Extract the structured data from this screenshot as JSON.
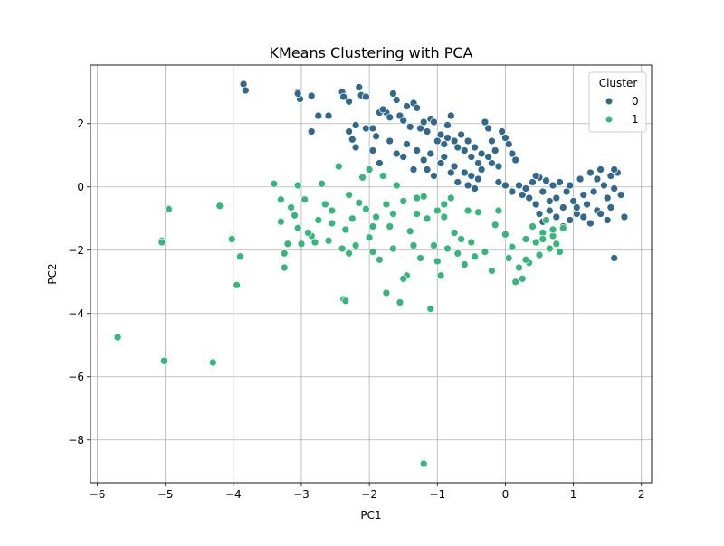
{
  "colors": {
    "cluster0": "#31688e",
    "cluster1": "#35b779",
    "grid": "#b0b0b0"
  },
  "chart_data": {
    "type": "scatter",
    "title": "KMeans Clustering with PCA",
    "xlabel": "PC1",
    "ylabel": "PC2",
    "xlim": [
      -6.1,
      2.15
    ],
    "ylim": [
      -9.35,
      3.85
    ],
    "xticks": [
      -6,
      -5,
      -4,
      -3,
      -2,
      -1,
      0,
      1,
      2
    ],
    "yticks": [
      -8,
      -6,
      -4,
      -2,
      0,
      2
    ],
    "grid": true,
    "legend": {
      "title": "Cluster",
      "placement": "top-right",
      "labels": [
        "0",
        "1"
      ]
    },
    "series": [
      {
        "name": "0",
        "points": [
          [
            -3.85,
            3.25
          ],
          [
            -3.82,
            3.05
          ],
          [
            -3.05,
            3.0
          ],
          [
            -3.02,
            2.78
          ],
          [
            -2.85,
            2.88
          ],
          [
            -2.75,
            2.25
          ],
          [
            -2.85,
            1.75
          ],
          [
            -2.4,
            3.0
          ],
          [
            -2.38,
            2.85
          ],
          [
            -2.3,
            2.7
          ],
          [
            -2.15,
            3.15
          ],
          [
            -2.12,
            2.9
          ],
          [
            -2.05,
            2.85
          ],
          [
            -2.3,
            1.75
          ],
          [
            -2.25,
            1.5
          ],
          [
            -2.2,
            1.95
          ],
          [
            -2.2,
            1.25
          ],
          [
            -2.05,
            1.85
          ],
          [
            -1.95,
            1.85
          ],
          [
            -1.9,
            1.6
          ],
          [
            -1.85,
            2.35
          ],
          [
            -1.75,
            2.35
          ],
          [
            -1.7,
            2.2
          ],
          [
            -1.65,
            2.95
          ],
          [
            -1.6,
            2.75
          ],
          [
            -1.55,
            2.25
          ],
          [
            -1.5,
            2.1
          ],
          [
            -1.45,
            2.55
          ],
          [
            -1.4,
            1.9
          ],
          [
            -1.35,
            2.65
          ],
          [
            -1.3,
            2.5
          ],
          [
            -1.25,
            1.85
          ],
          [
            -1.2,
            2.05
          ],
          [
            -1.15,
            1.75
          ],
          [
            -1.1,
            2.15
          ],
          [
            -1.05,
            2.05
          ],
          [
            -1.0,
            1.45
          ],
          [
            -0.95,
            1.65
          ],
          [
            -0.9,
            1.35
          ],
          [
            -0.85,
            1.95
          ],
          [
            -0.8,
            2.25
          ],
          [
            -0.75,
            1.45
          ],
          [
            -0.7,
            1.25
          ],
          [
            -0.65,
            1.65
          ],
          [
            -0.6,
            1.15
          ],
          [
            -0.55,
            1.45
          ],
          [
            -0.5,
            0.95
          ],
          [
            -0.45,
            1.25
          ],
          [
            -0.4,
            0.75
          ],
          [
            -0.35,
            1.05
          ],
          [
            -0.3,
            2.05
          ],
          [
            -0.25,
            1.85
          ],
          [
            -0.2,
            1.45
          ],
          [
            -0.15,
            1.15
          ],
          [
            -0.1,
            0.65
          ],
          [
            -0.05,
            1.75
          ],
          [
            0.0,
            1.55
          ],
          [
            0.05,
            1.35
          ],
          [
            0.1,
            1.05
          ],
          [
            0.15,
            0.85
          ],
          [
            -1.95,
            1.15
          ],
          [
            -1.85,
            0.75
          ],
          [
            -1.7,
            1.45
          ],
          [
            -1.6,
            1.05
          ],
          [
            -1.5,
            0.95
          ],
          [
            -1.45,
            1.35
          ],
          [
            -1.35,
            0.55
          ],
          [
            -1.3,
            1.15
          ],
          [
            -1.2,
            0.85
          ],
          [
            -1.15,
            0.55
          ],
          [
            -1.1,
            1.05
          ],
          [
            -1.05,
            0.35
          ],
          [
            -0.95,
            0.75
          ],
          [
            -0.9,
            0.95
          ],
          [
            -0.8,
            0.45
          ],
          [
            -0.75,
            0.65
          ],
          [
            -0.7,
            0.15
          ],
          [
            -0.6,
            0.45
          ],
          [
            -0.55,
            0.05
          ],
          [
            -0.5,
            0.35
          ],
          [
            -0.45,
            -0.05
          ],
          [
            -0.4,
            0.25
          ],
          [
            -0.35,
            0.55
          ],
          [
            -0.2,
            0.75
          ],
          [
            -0.1,
            0.15
          ],
          [
            0.0,
            0.05
          ],
          [
            0.1,
            -0.15
          ],
          [
            0.2,
            0.05
          ],
          [
            0.25,
            -0.25
          ],
          [
            0.3,
            -0.05
          ],
          [
            0.35,
            -0.35
          ],
          [
            0.4,
            0.15
          ],
          [
            0.45,
            -0.55
          ],
          [
            0.5,
            0.3
          ],
          [
            0.55,
            -0.15
          ],
          [
            0.6,
            0.2
          ],
          [
            0.65,
            -0.45
          ],
          [
            0.7,
            0.05
          ],
          [
            0.75,
            -0.35
          ],
          [
            0.8,
            0.15
          ],
          [
            0.85,
            -0.65
          ],
          [
            0.9,
            -0.15
          ],
          [
            0.95,
            0.05
          ],
          [
            1.0,
            -0.45
          ],
          [
            1.05,
            -0.85
          ],
          [
            1.1,
            0.25
          ],
          [
            1.15,
            -0.25
          ],
          [
            1.2,
            -0.55
          ],
          [
            1.25,
            0.45
          ],
          [
            1.3,
            -0.15
          ],
          [
            1.35,
            -0.75
          ],
          [
            1.4,
            0.55
          ],
          [
            1.45,
            0.05
          ],
          [
            1.5,
            -0.35
          ],
          [
            1.55,
            0.35
          ],
          [
            1.6,
            -0.05
          ],
          [
            1.65,
            0.45
          ],
          [
            1.7,
            -0.25
          ],
          [
            1.75,
            -0.95
          ],
          [
            1.6,
            -2.25
          ],
          [
            0.5,
            -0.85
          ],
          [
            0.55,
            -1.1
          ],
          [
            0.65,
            -0.75
          ],
          [
            0.75,
            -0.95
          ],
          [
            0.85,
            -1.25
          ],
          [
            0.95,
            -1.05
          ],
          [
            1.05,
            -0.65
          ],
          [
            1.15,
            -0.95
          ],
          [
            1.25,
            -1.15
          ],
          [
            1.4,
            -0.85
          ],
          [
            1.5,
            -1.05
          ],
          [
            1.55,
            -0.65
          ],
          [
            -3.05,
            2.95
          ],
          [
            -2.6,
            2.25
          ],
          [
            -1.8,
            2.45
          ],
          [
            -0.85,
            1.55
          ],
          [
            -0.25,
            0.95
          ],
          [
            0.45,
            0.35
          ],
          [
            1.35,
            0.25
          ],
          [
            1.6,
            0.55
          ]
        ]
      },
      {
        "name": "1",
        "points": [
          [
            -5.7,
            -4.75
          ],
          [
            -5.05,
            -1.7
          ],
          [
            -5.05,
            -1.75
          ],
          [
            -5.02,
            -5.5
          ],
          [
            -4.95,
            -0.7
          ],
          [
            -4.3,
            -5.55
          ],
          [
            -4.2,
            -0.6
          ],
          [
            -4.02,
            -1.65
          ],
          [
            -3.95,
            -3.1
          ],
          [
            -3.9,
            -2.2
          ],
          [
            -3.4,
            0.1
          ],
          [
            -3.3,
            -0.4
          ],
          [
            -3.3,
            -1.1
          ],
          [
            -3.25,
            -2.1
          ],
          [
            -3.25,
            -2.55
          ],
          [
            -3.2,
            -1.8
          ],
          [
            -3.1,
            -0.9
          ],
          [
            -3.05,
            0.05
          ],
          [
            -3.05,
            -1.3
          ],
          [
            -3.0,
            -1.8
          ],
          [
            -2.95,
            -0.4
          ],
          [
            -2.85,
            -1.55
          ],
          [
            -2.8,
            -1.75
          ],
          [
            -2.7,
            0.1
          ],
          [
            -2.65,
            -0.55
          ],
          [
            -2.6,
            -1.7
          ],
          [
            -2.55,
            -0.75
          ],
          [
            -2.45,
            0.65
          ],
          [
            -2.4,
            -1.95
          ],
          [
            -2.38,
            -3.55
          ],
          [
            -2.35,
            -1.35
          ],
          [
            -2.3,
            -0.25
          ],
          [
            -2.3,
            -2.1
          ],
          [
            -2.25,
            -1.0
          ],
          [
            -2.2,
            -1.85
          ],
          [
            -2.15,
            -0.5
          ],
          [
            -2.1,
            0.3
          ],
          [
            -2.05,
            -0.7
          ],
          [
            -2.0,
            -1.6
          ],
          [
            -1.95,
            -2.05
          ],
          [
            -1.9,
            -0.95
          ],
          [
            -1.85,
            -2.3
          ],
          [
            -1.8,
            0.35
          ],
          [
            -1.75,
            -0.55
          ],
          [
            -1.7,
            -1.25
          ],
          [
            -1.65,
            -1.95
          ],
          [
            -1.6,
            0.05
          ],
          [
            -1.55,
            -3.65
          ],
          [
            -1.5,
            -0.45
          ],
          [
            -1.45,
            -2.8
          ],
          [
            -1.4,
            -1.4
          ],
          [
            -1.35,
            -1.85
          ],
          [
            -1.3,
            -0.85
          ],
          [
            -1.25,
            -2.25
          ],
          [
            -1.2,
            -0.3
          ],
          [
            -1.15,
            -1.0
          ],
          [
            -1.1,
            -3.85
          ],
          [
            -1.05,
            -1.85
          ],
          [
            -1.0,
            -0.75
          ],
          [
            -0.95,
            -2.8
          ],
          [
            -0.9,
            -0.55
          ],
          [
            -0.85,
            -1.95
          ],
          [
            -0.8,
            -0.35
          ],
          [
            -0.75,
            -1.45
          ],
          [
            -0.7,
            -2.1
          ],
          [
            -0.65,
            -1.65
          ],
          [
            -0.6,
            -2.45
          ],
          [
            -0.5,
            -1.75
          ],
          [
            -0.4,
            -0.8
          ],
          [
            -0.3,
            -2.05
          ],
          [
            -0.2,
            -2.65
          ],
          [
            -0.1,
            -0.75
          ],
          [
            0.0,
            -1.5
          ],
          [
            0.05,
            -2.25
          ],
          [
            0.1,
            -1.9
          ],
          [
            0.15,
            -3.0
          ],
          [
            0.2,
            -2.55
          ],
          [
            0.25,
            -2.9
          ],
          [
            0.3,
            -1.65
          ],
          [
            0.35,
            -2.4
          ],
          [
            0.4,
            -1.25
          ],
          [
            0.45,
            -1.75
          ],
          [
            0.5,
            -2.15
          ],
          [
            0.55,
            -1.45
          ],
          [
            0.6,
            -1.05
          ],
          [
            0.65,
            -1.95
          ],
          [
            0.7,
            -1.55
          ],
          [
            0.75,
            -1.8
          ],
          [
            0.8,
            -2.05
          ],
          [
            0.85,
            -1.3
          ],
          [
            -1.2,
            -8.75
          ],
          [
            -2.35,
            -3.6
          ],
          [
            -1.75,
            -3.35
          ],
          [
            -1.5,
            -2.9
          ],
          [
            -2.55,
            -1.15
          ],
          [
            -2.0,
            0.55
          ],
          [
            -1.3,
            -0.35
          ],
          [
            -0.9,
            -0.95
          ],
          [
            -0.55,
            -0.75
          ],
          [
            -2.75,
            -1.05
          ],
          [
            -2.9,
            -1.45
          ],
          [
            -3.15,
            -0.65
          ],
          [
            -1.95,
            -1.25
          ],
          [
            -1.65,
            -0.85
          ],
          [
            -0.15,
            -1.2
          ],
          [
            0.3,
            -2.3
          ],
          [
            0.55,
            -1.65
          ],
          [
            0.7,
            -1.35
          ],
          [
            -0.45,
            -2.2
          ],
          [
            -1.0,
            -2.35
          ]
        ]
      }
    ]
  }
}
